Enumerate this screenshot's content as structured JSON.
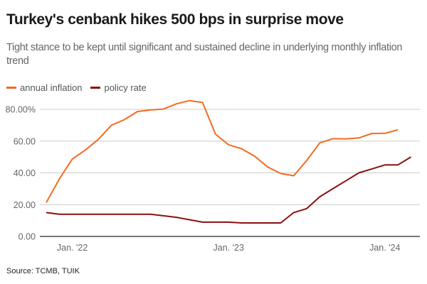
{
  "chart_data": {
    "type": "line",
    "title": "Turkey's cenbank hikes 500 bps in surprise move",
    "subtitle": "Tight stance to be kept until significant and sustained decline in underlying monthly inflation trend",
    "source": "Source: TCMB, TUIK",
    "x_start": "2021-11",
    "x_ticks": [
      {
        "month": "2022-01",
        "label": "Jan. '22"
      },
      {
        "month": "2023-01",
        "label": "Jan. '23"
      },
      {
        "month": "2024-01",
        "label": "Jan. '24"
      }
    ],
    "y_ticks": [
      {
        "value": 0,
        "label": "0.00"
      },
      {
        "value": 20,
        "label": "20.00"
      },
      {
        "value": 40,
        "label": "40.00"
      },
      {
        "value": 60,
        "label": "60.00"
      },
      {
        "value": 80,
        "label": "80.00%"
      }
    ],
    "ylim": [
      0,
      85
    ],
    "grid": true,
    "legend_placement": "top-left",
    "series": [
      {
        "name": "annual inflation",
        "color": "#f26c21",
        "values": [
          21.3,
          36.1,
          48.7,
          54.4,
          61.1,
          70.0,
          73.5,
          78.6,
          79.6,
          80.2,
          83.5,
          85.5,
          84.4,
          64.3,
          57.7,
          55.2,
          50.5,
          43.7,
          39.6,
          38.2,
          47.8,
          58.9,
          61.5,
          61.4,
          62.0,
          64.8,
          64.9,
          67.1
        ]
      },
      {
        "name": "policy rate",
        "color": "#8b1010",
        "values": [
          15,
          14,
          14,
          14,
          14,
          14,
          14,
          14,
          14,
          13,
          12,
          10.5,
          9,
          9,
          9,
          8.5,
          8.5,
          8.5,
          8.5,
          15,
          17.5,
          25,
          30,
          35,
          40,
          42.5,
          45,
          45,
          50
        ]
      }
    ]
  }
}
